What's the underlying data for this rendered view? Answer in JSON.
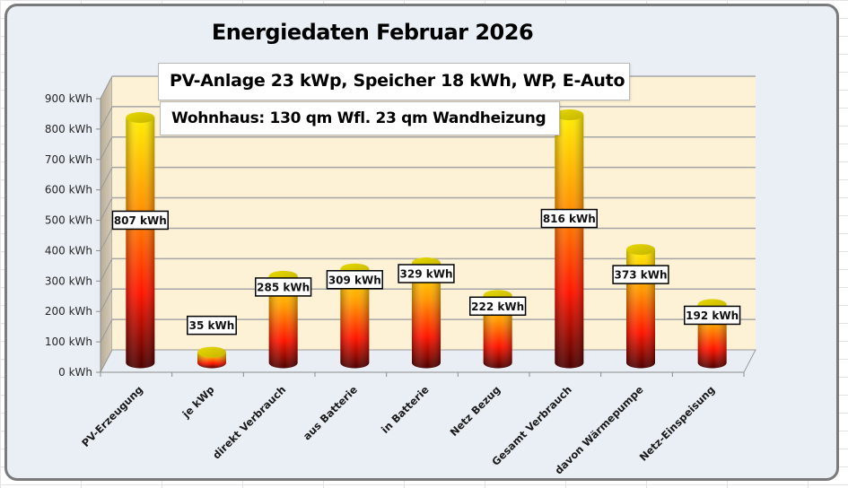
{
  "chart_data": {
    "type": "bar",
    "style": "3d-cylinder",
    "title": "Energiedaten Februar 2026",
    "annotations": [
      "PV-Anlage 23 kWp, Speicher 18 kWh, WP, E-Auto",
      "Wohnhaus: 130 qm Wfl. 23 qm Wandheizung"
    ],
    "xlabel": "",
    "ylabel": "",
    "ylim": [
      0,
      900
    ],
    "yticks": [
      0,
      100,
      200,
      300,
      400,
      500,
      600,
      700,
      800,
      900
    ],
    "ytick_labels": [
      "0 kWh",
      "100 kWh",
      "200 kWh",
      "300 kWh",
      "400 kWh",
      "500 kWh",
      "600 kWh",
      "700 kWh",
      "800 kWh",
      "900 kWh"
    ],
    "grid": true,
    "legend": "none",
    "categories": [
      "PV-Erzeugung",
      "je kWp",
      "direkt Verbrauch",
      "aus Batterie",
      "in Batterie",
      "Netz Bezug",
      "Gesamt Verbrauch",
      "davon Wärmepumpe",
      "Netz-Einspeisung"
    ],
    "values": [
      807,
      35,
      285,
      309,
      329,
      222,
      816,
      373,
      192
    ],
    "data_labels": [
      "807 kWh",
      "35 kWh",
      "285 kWh",
      "309 kWh",
      "329 kWh",
      "222 kWh",
      "816 kWh",
      "373 kWh",
      "192 kWh"
    ],
    "colors": {
      "bar_top": "#ffee00",
      "bar_mid": "#ff9900",
      "bar_low": "#ff1a00",
      "bar_base": "#5a0000",
      "wall": "#fdf1d6",
      "floor": "#e9eef5",
      "side_wall": "#c8bca6",
      "gridline": "#a6a6a6",
      "frame_bg": "#eaeff6"
    }
  }
}
